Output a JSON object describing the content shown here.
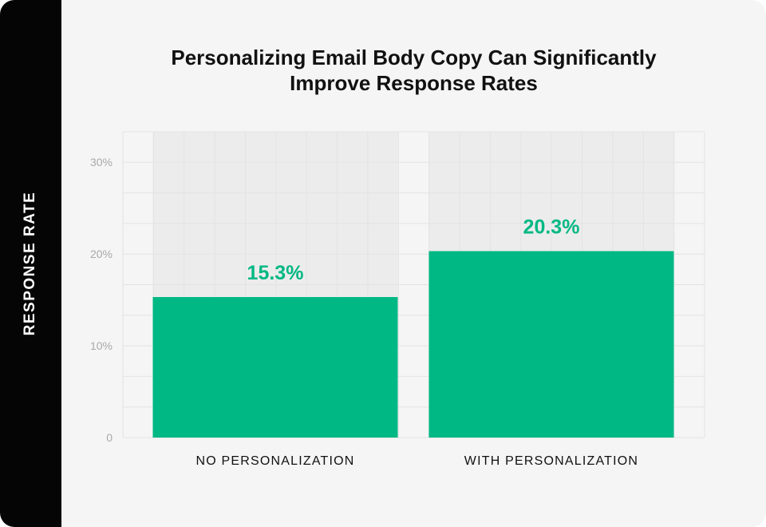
{
  "title_lines": [
    "Personalizing Email Body Copy Can Significantly",
    "Improve Response Rates"
  ],
  "colors": {
    "bar": "#00b884",
    "label": "#00b884",
    "panel_bg": "#f5f5f5",
    "band_bg": "#050505",
    "grid": "#e3e3e3",
    "track": "#ececec"
  },
  "chart_data": {
    "type": "bar",
    "title": "Personalizing Email Body Copy Can Significantly Improve Response Rates",
    "xlabel": "",
    "ylabel": "RESPONSE RATE",
    "categories": [
      "NO PERSONALIZATION",
      "WITH PERSONALIZATION"
    ],
    "values": [
      15.3,
      20.3
    ],
    "data_labels": [
      "15.3%",
      "20.3%"
    ],
    "ylim": [
      0,
      33.3
    ],
    "yticks": [
      0,
      10,
      20,
      30
    ],
    "ytick_labels": [
      "0",
      "10%",
      "20%",
      "30%"
    ],
    "grid": true,
    "legend": "none"
  }
}
